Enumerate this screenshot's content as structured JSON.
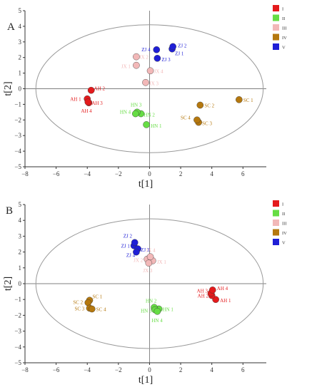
{
  "chart_data": [
    {
      "type": "scatter",
      "panel_label": "A",
      "xlabel": "t[1]",
      "ylabel": "t[2]",
      "xlim": [
        -8,
        7.5
      ],
      "ylim": [
        -5,
        5
      ],
      "xticks": [
        -8,
        -6,
        -4,
        -2,
        0,
        2,
        4,
        6
      ],
      "yticks": [
        -5,
        -4,
        -3,
        -2,
        -1,
        0,
        1,
        2,
        3,
        4,
        5
      ],
      "grid": false,
      "confidence_ellipse": {
        "center": [
          0,
          0
        ],
        "rx": 7.3,
        "ry": 4.1
      },
      "legend": {
        "position": "right",
        "entries": [
          "I",
          "II",
          "III",
          "IV",
          "V"
        ]
      },
      "series": [
        {
          "name": "I",
          "color": "#e41a1c",
          "points": [
            {
              "label": "AH 1",
              "x": -4.0,
              "y": -0.65
            },
            {
              "label": "AH 2",
              "x": -3.75,
              "y": -0.1
            },
            {
              "label": "AH 3",
              "x": -3.9,
              "y": -0.9
            },
            {
              "label": "AH 4",
              "x": -3.95,
              "y": -0.85
            }
          ]
        },
        {
          "name": "II",
          "color": "#66dd44",
          "points": [
            {
              "label": "HN 1",
              "x": -0.2,
              "y": -2.3
            },
            {
              "label": "HN 2",
              "x": -0.55,
              "y": -1.6
            },
            {
              "label": "HN 3",
              "x": -0.8,
              "y": -1.5
            },
            {
              "label": "HN 4",
              "x": -0.9,
              "y": -1.6
            }
          ]
        },
        {
          "name": "III",
          "color": "#f2b8b8",
          "points": [
            {
              "label": "JX 1",
              "x": -0.85,
              "y": 1.5
            },
            {
              "label": "JX 2",
              "x": -0.85,
              "y": 2.05
            },
            {
              "label": "JX 3",
              "x": -0.25,
              "y": 0.4
            },
            {
              "label": "JX 4",
              "x": 0.05,
              "y": 1.15
            }
          ]
        },
        {
          "name": "IV",
          "color": "#b5780e",
          "points": [
            {
              "label": "SC 1",
              "x": 5.75,
              "y": -0.7
            },
            {
              "label": "SC 2",
              "x": 3.25,
              "y": -1.05
            },
            {
              "label": "SC 3",
              "x": 3.15,
              "y": -2.15
            },
            {
              "label": "SC 4",
              "x": 3.05,
              "y": -2.0
            }
          ]
        },
        {
          "name": "V",
          "color": "#1f1fd6",
          "points": [
            {
              "label": "ZJ 1",
              "x": 1.45,
              "y": 2.55
            },
            {
              "label": "ZJ 2",
              "x": 1.5,
              "y": 2.7
            },
            {
              "label": "ZJ 3",
              "x": 0.5,
              "y": 1.95
            },
            {
              "label": "ZJ 4",
              "x": 0.45,
              "y": 2.5
            }
          ]
        }
      ]
    },
    {
      "type": "scatter",
      "panel_label": "B",
      "xlabel": "t[1]",
      "ylabel": "t[2]",
      "xlim": [
        -8,
        7.5
      ],
      "ylim": [
        -5,
        5
      ],
      "xticks": [
        -8,
        -6,
        -4,
        -2,
        0,
        2,
        4,
        6
      ],
      "yticks": [
        -5,
        -4,
        -3,
        -2,
        -1,
        0,
        1,
        2,
        3,
        4,
        5
      ],
      "grid": false,
      "confidence_ellipse": {
        "center": [
          0,
          0
        ],
        "rx": 7.3,
        "ry": 4.1
      },
      "legend": {
        "position": "right",
        "entries": [
          "I",
          "II",
          "III",
          "IV",
          "V"
        ]
      },
      "series": [
        {
          "name": "I",
          "color": "#e41a1c",
          "points": [
            {
              "label": "AH 1",
              "x": 4.25,
              "y": -1.0
            },
            {
              "label": "AH 2",
              "x": 4.0,
              "y": -0.75
            },
            {
              "label": "AH 3",
              "x": 3.95,
              "y": -0.6
            },
            {
              "label": "AH 4",
              "x": 4.05,
              "y": -0.4
            }
          ]
        },
        {
          "name": "II",
          "color": "#66dd44",
          "points": [
            {
              "label": "HN 1",
              "x": 0.6,
              "y": -1.6
            },
            {
              "label": "HN 2",
              "x": 0.3,
              "y": -1.5
            },
            {
              "label": "HN 3",
              "x": 0.35,
              "y": -1.65
            },
            {
              "label": "HN 4",
              "x": 0.5,
              "y": -1.75
            }
          ]
        },
        {
          "name": "III",
          "color": "#f2b8b8",
          "points": [
            {
              "label": "JX 1",
              "x": 0.2,
              "y": 1.45
            },
            {
              "label": "JX 2",
              "x": -0.15,
              "y": 1.55
            },
            {
              "label": "JX 3",
              "x": -0.05,
              "y": 1.3
            },
            {
              "label": "JX 4",
              "x": 0.05,
              "y": 1.7
            }
          ]
        },
        {
          "name": "IV",
          "color": "#b5780e",
          "points": [
            {
              "label": "SC 1",
              "x": -3.85,
              "y": -1.05
            },
            {
              "label": "SC 2",
              "x": -3.95,
              "y": -1.2
            },
            {
              "label": "SC 3",
              "x": -3.85,
              "y": -1.55
            },
            {
              "label": "SC 4",
              "x": -3.7,
              "y": -1.6
            }
          ]
        },
        {
          "name": "V",
          "color": "#1f1fd6",
          "points": [
            {
              "label": "ZJ 1",
              "x": -1.0,
              "y": 2.4
            },
            {
              "label": "ZJ 2",
              "x": -0.95,
              "y": 2.6
            },
            {
              "label": "ZJ 3",
              "x": -0.75,
              "y": 2.2
            },
            {
              "label": "ZJ 4",
              "x": -0.85,
              "y": 2.0
            }
          ]
        }
      ]
    }
  ]
}
